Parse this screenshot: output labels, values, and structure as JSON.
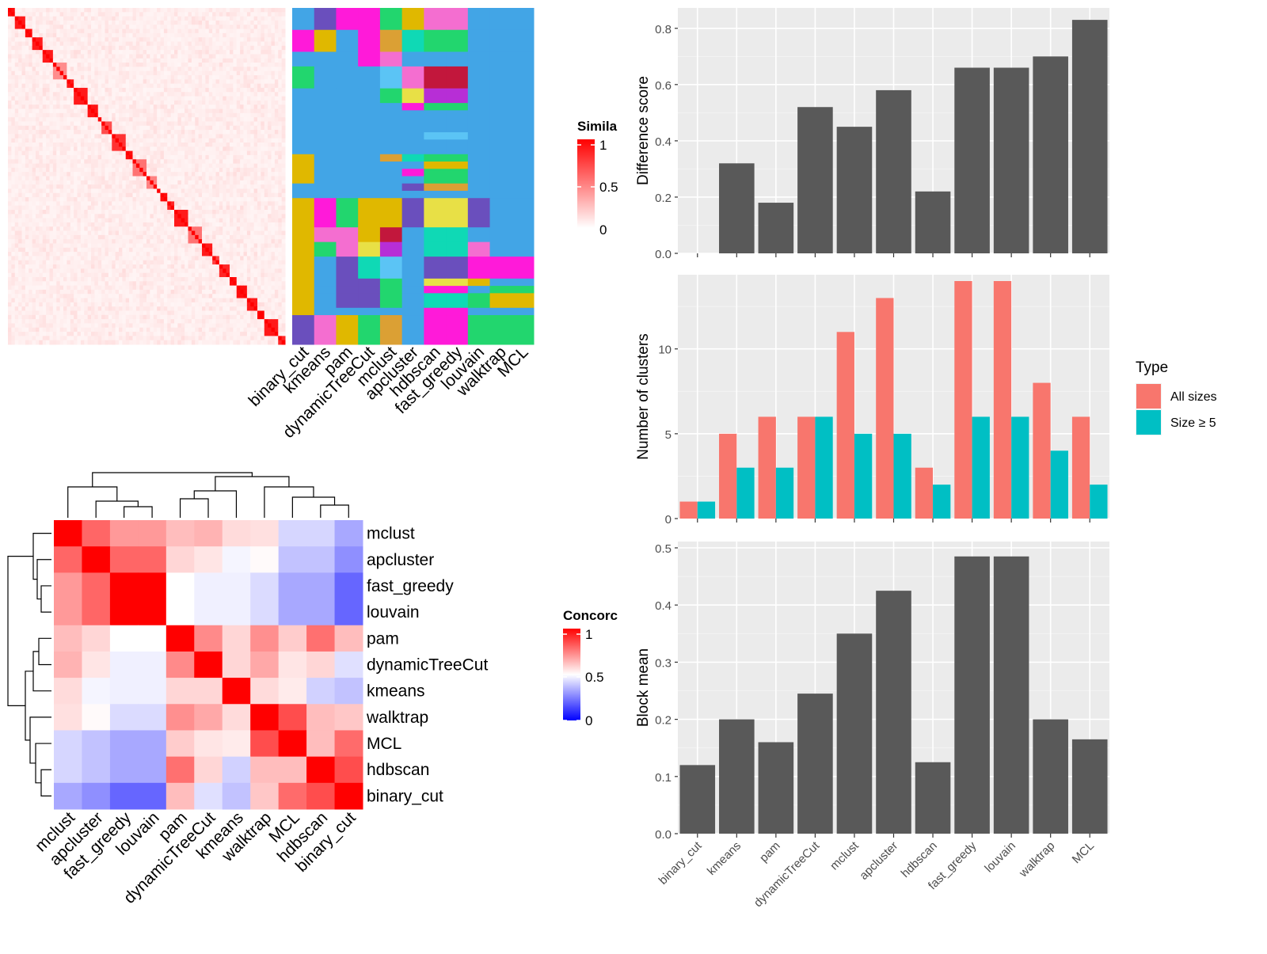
{
  "chart_data": [
    {
      "type": "heatmap",
      "id": "similarity-heatmap",
      "legend": {
        "title": "Simila",
        "ticks": [
          "1",
          "0.5",
          "0"
        ],
        "colors": [
          "#ffffff",
          "#ff0000"
        ]
      },
      "diagonal_blocks": [
        [
          0,
          2,
          0.95
        ],
        [
          2,
          5,
          0.9
        ],
        [
          5,
          7,
          0.95
        ],
        [
          7,
          10,
          0.9
        ],
        [
          10,
          13,
          0.9
        ],
        [
          13,
          17,
          0.45
        ],
        [
          17,
          19,
          0.9
        ],
        [
          19,
          23,
          0.9
        ],
        [
          23,
          26,
          0.92
        ],
        [
          26,
          27,
          1.0
        ],
        [
          27,
          30,
          0.7
        ],
        [
          30,
          34,
          0.8
        ],
        [
          34,
          36,
          0.95
        ],
        [
          36,
          40,
          0.55
        ],
        [
          40,
          43,
          0.5
        ],
        [
          43,
          44,
          1.0
        ],
        [
          44,
          46,
          0.95
        ],
        [
          46,
          48,
          0.85
        ],
        [
          48,
          52,
          0.9
        ],
        [
          52,
          56,
          0.55
        ],
        [
          56,
          59,
          0.9
        ],
        [
          59,
          61,
          0.75
        ],
        [
          61,
          64,
          0.85
        ],
        [
          64,
          66,
          0.95
        ],
        [
          66,
          69,
          0.95
        ],
        [
          69,
          72,
          0.9
        ],
        [
          72,
          74,
          1.0
        ],
        [
          74,
          78,
          0.9
        ],
        [
          78,
          80,
          0.85
        ]
      ],
      "n": 80,
      "background_level": 0.1
    },
    {
      "type": "heatmap",
      "id": "cluster-membership",
      "columns": [
        "binary_cut",
        "kmeans",
        "pam",
        "dynamicTreeCut",
        "mclust",
        "apcluster",
        "hdbscan",
        "fast_greedy",
        "louvain",
        "walktrap",
        "MCL"
      ],
      "colors": {
        "A": "#42a5e6",
        "B": "#6a4fbd",
        "C": "#ff1ad9",
        "D": "#22d66e",
        "E": "#e0b800",
        "F": "#f46ed0",
        "G": "#dba034",
        "H": "#0fd9b5",
        "I": "#5bc4f5",
        "J": "#c2173c",
        "K": "#e8e046",
        "L": "#b72ed6"
      },
      "rows": [
        {
          "h": 3,
          "cells": [
            "A",
            "B",
            "C",
            "C",
            "D",
            "E",
            "F",
            "F",
            "A",
            "A",
            "A"
          ]
        },
        {
          "h": 3,
          "cells": [
            "C",
            "E",
            "A",
            "C",
            "G",
            "H",
            "D",
            "D",
            "A",
            "A",
            "A"
          ]
        },
        {
          "h": 2,
          "cells": [
            "A",
            "A",
            "A",
            "C",
            "F",
            "A",
            "A",
            "A",
            "A",
            "A",
            "A"
          ]
        },
        {
          "h": 3,
          "cells": [
            "D",
            "A",
            "A",
            "A",
            "I",
            "F",
            "J",
            "J",
            "A",
            "A",
            "A"
          ]
        },
        {
          "h": 2,
          "cells": [
            "A",
            "A",
            "A",
            "A",
            "D",
            "K",
            "L",
            "L",
            "A",
            "A",
            "A"
          ]
        },
        {
          "h": 1,
          "cells": [
            "A",
            "A",
            "A",
            "A",
            "A",
            "C",
            "D",
            "D",
            "A",
            "A",
            "A"
          ]
        },
        {
          "h": 3,
          "cells": [
            "A",
            "A",
            "A",
            "A",
            "A",
            "A",
            "A",
            "A",
            "A",
            "A",
            "A"
          ]
        },
        {
          "h": 1,
          "cells": [
            "A",
            "A",
            "A",
            "A",
            "A",
            "A",
            "I",
            "I",
            "A",
            "A",
            "A"
          ]
        },
        {
          "h": 2,
          "cells": [
            "A",
            "A",
            "A",
            "A",
            "A",
            "A",
            "A",
            "A",
            "A",
            "A",
            "A"
          ]
        },
        {
          "h": 1,
          "cells": [
            "E",
            "A",
            "A",
            "A",
            "G",
            "H",
            "D",
            "D",
            "A",
            "A",
            "A"
          ]
        },
        {
          "h": 1,
          "cells": [
            "E",
            "A",
            "A",
            "A",
            "A",
            "A",
            "E",
            "E",
            "A",
            "A",
            "A"
          ]
        },
        {
          "h": 1,
          "cells": [
            "E",
            "A",
            "A",
            "A",
            "A",
            "C",
            "D",
            "D",
            "A",
            "A",
            "A"
          ]
        },
        {
          "h": 1,
          "cells": [
            "E",
            "A",
            "A",
            "A",
            "A",
            "A",
            "D",
            "D",
            "A",
            "A",
            "A"
          ]
        },
        {
          "h": 1,
          "cells": [
            "A",
            "A",
            "A",
            "A",
            "A",
            "B",
            "G",
            "G",
            "A",
            "A",
            "A"
          ]
        },
        {
          "h": 1,
          "cells": [
            "A",
            "A",
            "A",
            "A",
            "A",
            "A",
            "A",
            "A",
            "A",
            "A",
            "A"
          ]
        },
        {
          "h": 4,
          "cells": [
            "E",
            "C",
            "D",
            "E",
            "E",
            "B",
            "K",
            "K",
            "B",
            "A",
            "A"
          ]
        },
        {
          "h": 2,
          "cells": [
            "E",
            "F",
            "F",
            "E",
            "J",
            "A",
            "H",
            "H",
            "A",
            "A",
            "A"
          ]
        },
        {
          "h": 2,
          "cells": [
            "E",
            "D",
            "F",
            "K",
            "L",
            "A",
            "H",
            "H",
            "F",
            "A",
            "A"
          ]
        },
        {
          "h": 3,
          "cells": [
            "E",
            "A",
            "B",
            "H",
            "I",
            "A",
            "B",
            "B",
            "C",
            "C",
            "C"
          ]
        },
        {
          "h": 1,
          "cells": [
            "E",
            "A",
            "B",
            "B",
            "D",
            "A",
            "K",
            "K",
            "E",
            "A",
            "A"
          ]
        },
        {
          "h": 1,
          "cells": [
            "E",
            "A",
            "B",
            "B",
            "D",
            "A",
            "C",
            "C",
            "A",
            "D",
            "D"
          ]
        },
        {
          "h": 2,
          "cells": [
            "E",
            "A",
            "B",
            "B",
            "D",
            "A",
            "H",
            "H",
            "D",
            "E",
            "E"
          ]
        },
        {
          "h": 1,
          "cells": [
            "E",
            "A",
            "A",
            "A",
            "A",
            "A",
            "C",
            "C",
            "A",
            "A",
            "A"
          ]
        },
        {
          "h": 4,
          "cells": [
            "B",
            "F",
            "E",
            "D",
            "G",
            "A",
            "C",
            "C",
            "D",
            "D",
            "D"
          ]
        }
      ]
    },
    {
      "type": "heatmap",
      "id": "concordance-heatmap",
      "legend": {
        "title": "Concorc",
        "ticks": [
          "1",
          "0.5",
          "0"
        ],
        "colors": [
          "#0000ff",
          "#ffffff",
          "#ff0000"
        ]
      },
      "rows": [
        "mclust",
        "apcluster",
        "fast_greedy",
        "louvain",
        "pam",
        "dynamicTreeCut",
        "kmeans",
        "walktrap",
        "MCL",
        "hdbscan",
        "binary_cut"
      ],
      "cols": [
        "mclust",
        "apcluster",
        "fast_greedy",
        "louvain",
        "pam",
        "dynamicTreeCut",
        "kmeans",
        "walktrap",
        "MCL",
        "hdbscan",
        "binary_cut"
      ],
      "values": [
        [
          1.0,
          0.8,
          0.7,
          0.7,
          0.63,
          0.65,
          0.57,
          0.56,
          0.42,
          0.42,
          0.33
        ],
        [
          0.8,
          1.0,
          0.8,
          0.8,
          0.58,
          0.55,
          0.48,
          0.51,
          0.38,
          0.38,
          0.28
        ],
        [
          0.7,
          0.8,
          1.0,
          1.0,
          0.5,
          0.47,
          0.47,
          0.43,
          0.33,
          0.33,
          0.2
        ],
        [
          0.7,
          0.8,
          1.0,
          1.0,
          0.5,
          0.47,
          0.47,
          0.43,
          0.33,
          0.33,
          0.2
        ],
        [
          0.63,
          0.58,
          0.5,
          0.5,
          1.0,
          0.73,
          0.58,
          0.72,
          0.6,
          0.78,
          0.63
        ],
        [
          0.65,
          0.55,
          0.47,
          0.47,
          0.73,
          1.0,
          0.58,
          0.67,
          0.55,
          0.58,
          0.44
        ],
        [
          0.57,
          0.48,
          0.47,
          0.47,
          0.58,
          0.58,
          1.0,
          0.57,
          0.54,
          0.41,
          0.38
        ],
        [
          0.56,
          0.51,
          0.43,
          0.43,
          0.72,
          0.67,
          0.57,
          1.0,
          0.85,
          0.63,
          0.61
        ],
        [
          0.42,
          0.38,
          0.33,
          0.33,
          0.6,
          0.55,
          0.54,
          0.85,
          1.0,
          0.63,
          0.79
        ],
        [
          0.42,
          0.38,
          0.33,
          0.33,
          0.78,
          0.58,
          0.41,
          0.63,
          0.63,
          1.0,
          0.85
        ],
        [
          0.33,
          0.28,
          0.2,
          0.2,
          0.63,
          0.44,
          0.38,
          0.61,
          0.79,
          0.85,
          1.0
        ]
      ]
    },
    {
      "type": "bar",
      "id": "difference-score",
      "ylabel": "Difference score",
      "ylim": [
        0,
        0.85
      ],
      "yticks": [
        "0.0",
        "0.2",
        "0.4",
        "0.6",
        "0.8"
      ],
      "categories": [
        "binary_cut",
        "kmeans",
        "pam",
        "dynamicTreeCut",
        "mclust",
        "apcluster",
        "hdbscan",
        "fast_greedy",
        "louvain",
        "walktrap",
        "MCL"
      ],
      "values": [
        0.0,
        0.32,
        0.18,
        0.52,
        0.45,
        0.58,
        0.22,
        0.66,
        0.66,
        0.7,
        0.83
      ],
      "color": "#595959"
    },
    {
      "type": "bar",
      "id": "number-of-clusters",
      "ylabel": "Number of clusters",
      "ylim": [
        0,
        14
      ],
      "yticks": [
        "0",
        "5",
        "10"
      ],
      "categories": [
        "binary_cut",
        "kmeans",
        "pam",
        "dynamicTreeCut",
        "mclust",
        "apcluster",
        "hdbscan",
        "fast_greedy",
        "louvain",
        "walktrap",
        "MCL"
      ],
      "series": [
        {
          "name": "All sizes",
          "color": "#f8766d",
          "values": [
            1,
            5,
            6,
            6,
            11,
            13,
            3,
            14,
            14,
            8,
            6
          ]
        },
        {
          "name": "Size ≥ 5",
          "color": "#00bfc4",
          "values": [
            1,
            3,
            3,
            6,
            5,
            5,
            2,
            6,
            6,
            4,
            2
          ]
        }
      ],
      "legend_title": "Type",
      "legend_position": "right"
    },
    {
      "type": "bar",
      "id": "block-mean",
      "ylabel": "Block mean",
      "ylim": [
        0,
        0.5
      ],
      "yticks": [
        "0.0",
        "0.1",
        "0.2",
        "0.3",
        "0.4",
        "0.5"
      ],
      "categories": [
        "binary_cut",
        "kmeans",
        "pam",
        "dynamicTreeCut",
        "mclust",
        "apcluster",
        "hdbscan",
        "fast_greedy",
        "louvain",
        "walktrap",
        "MCL"
      ],
      "values": [
        0.12,
        0.2,
        0.16,
        0.245,
        0.35,
        0.425,
        0.125,
        0.485,
        0.485,
        0.2,
        0.165
      ],
      "color": "#595959"
    }
  ]
}
